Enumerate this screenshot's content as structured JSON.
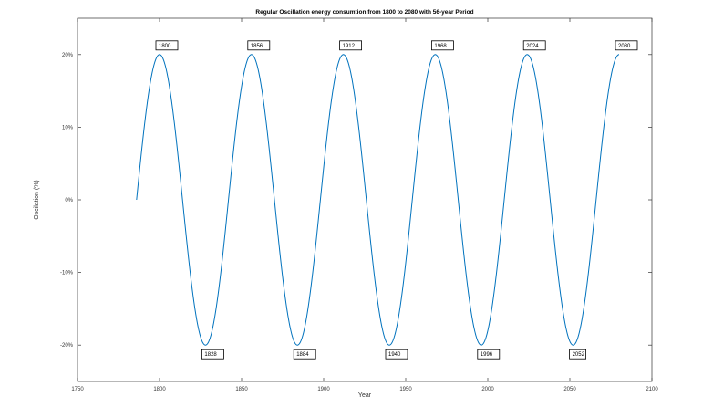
{
  "chart_data": {
    "type": "line",
    "title": "Regular Oscillation energy consumtion from 1800 to 2080 with 56-year Period",
    "xlabel": "Year",
    "ylabel": "Oscilation (%)",
    "xlim": [
      1750,
      2100
    ],
    "ylim": [
      -25,
      25
    ],
    "x_ticks": [
      1750,
      1800,
      1850,
      1900,
      1950,
      2000,
      2050,
      2100
    ],
    "x_tick_labels": [
      "1750",
      "1800",
      "1850",
      "1900",
      "1950",
      "2000",
      "2050",
      "2100"
    ],
    "y_ticks": [
      20,
      10,
      0,
      -10,
      -20
    ],
    "y_tick_labels": [
      "20%",
      "10%",
      "0%",
      "-10%",
      "-20%"
    ],
    "grid": false,
    "series": [
      {
        "amplitude": 20,
        "period": 56,
        "x_start": 1786,
        "x_end": 2080,
        "color": "#0072BD"
      }
    ],
    "annotations": [
      {
        "label": "1800",
        "x": 1800,
        "y": 20,
        "position": "above"
      },
      {
        "label": "1856",
        "x": 1856,
        "y": 20,
        "position": "above"
      },
      {
        "label": "1912",
        "x": 1912,
        "y": 20,
        "position": "above"
      },
      {
        "label": "1968",
        "x": 1968,
        "y": 20,
        "position": "above"
      },
      {
        "label": "2024",
        "x": 2024,
        "y": 20,
        "position": "above"
      },
      {
        "label": "2080",
        "x": 2080,
        "y": 20,
        "position": "above"
      },
      {
        "label": "1828",
        "x": 1828,
        "y": -20,
        "position": "below"
      },
      {
        "label": "1884",
        "x": 1884,
        "y": -20,
        "position": "below"
      },
      {
        "label": "1940",
        "x": 1940,
        "y": -20,
        "position": "below"
      },
      {
        "label": "1996",
        "x": 1996,
        "y": -20,
        "position": "below"
      },
      {
        "label": "2052",
        "x": 2052,
        "y": -20,
        "position": "below"
      }
    ]
  }
}
